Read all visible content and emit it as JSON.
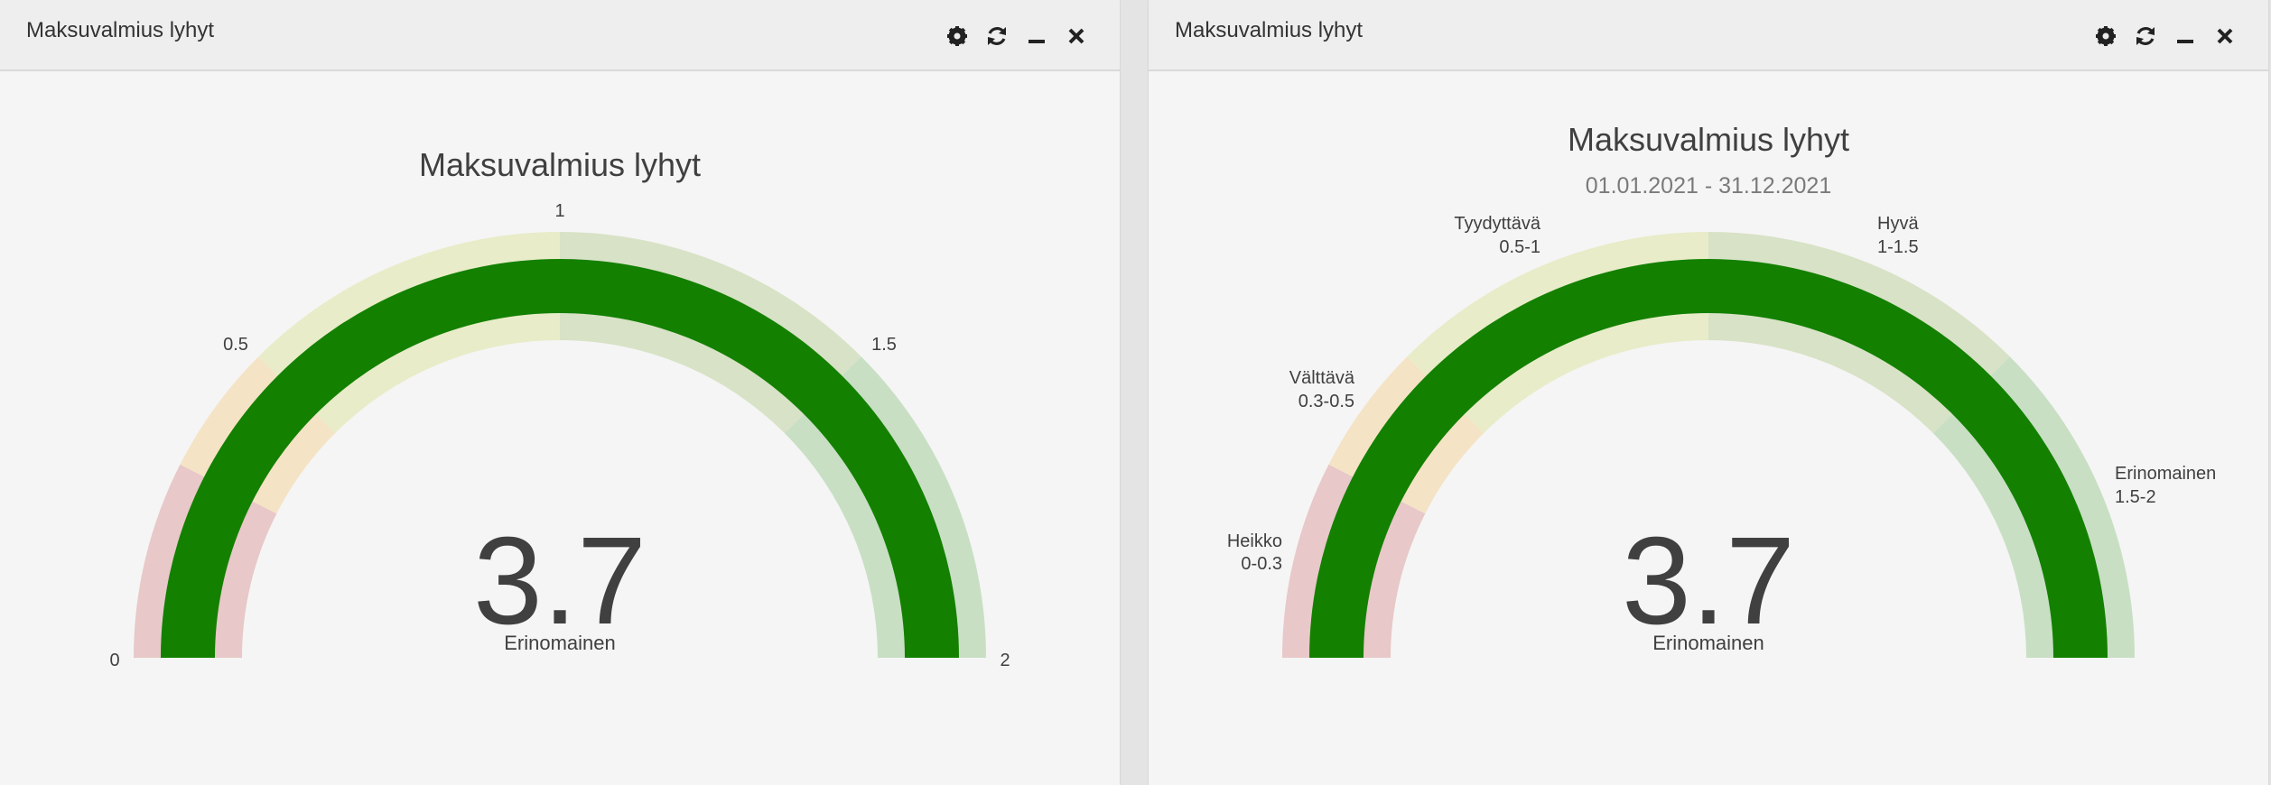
{
  "panels": [
    {
      "title": "Maksuvalmius lyhyt",
      "header_icons": [
        "gear-icon",
        "refresh-icon",
        "minimize-icon",
        "close-icon"
      ]
    },
    {
      "title": "Maksuvalmius lyhyt",
      "header_icons": [
        "gear-icon",
        "refresh-icon",
        "minimize-icon",
        "close-icon"
      ]
    }
  ],
  "colors": {
    "gauge_value": "#138000",
    "band_heikko": "#e8c8c8",
    "band_valttava": "#f5e3c6",
    "band_tyydyttava": "#e8ecc8",
    "band_hyva": "#d8e2c6",
    "band_erinomainen": "#c8dfc4",
    "text_dark": "#404040",
    "text_grey": "#7a7a7a"
  },
  "chart_data": [
    {
      "type": "gauge",
      "title": "Maksuvalmius lyhyt",
      "subtitle": "",
      "value": 3.7,
      "value_label": "3.7",
      "value_category": "Erinomainen",
      "range": [
        0,
        2
      ],
      "tick_labels": [
        {
          "value": 0,
          "text": "0"
        },
        {
          "value": 0.5,
          "text": "0.5"
        },
        {
          "value": 1,
          "text": "1"
        },
        {
          "value": 1.5,
          "text": "1.5"
        },
        {
          "value": 2,
          "text": "2"
        }
      ],
      "bands": [
        {
          "from": 0,
          "to": 0.3,
          "color": "#e8c8c8"
        },
        {
          "from": 0.3,
          "to": 0.5,
          "color": "#f5e3c6"
        },
        {
          "from": 0.5,
          "to": 1,
          "color": "#e8ecc8"
        },
        {
          "from": 1,
          "to": 1.5,
          "color": "#d8e2c6"
        },
        {
          "from": 1.5,
          "to": 2,
          "color": "#c8dfc4"
        }
      ]
    },
    {
      "type": "gauge",
      "title": "Maksuvalmius lyhyt",
      "subtitle": "01.01.2021 - 31.12.2021",
      "value": 3.7,
      "value_label": "3.7",
      "value_category": "Erinomainen",
      "range": [
        0,
        2
      ],
      "bands": [
        {
          "from": 0,
          "to": 0.3,
          "color": "#e8c8c8",
          "name": "Heikko",
          "range_text": "0-0.3"
        },
        {
          "from": 0.3,
          "to": 0.5,
          "color": "#f5e3c6",
          "name": "Välttävä",
          "range_text": "0.3-0.5"
        },
        {
          "from": 0.5,
          "to": 1,
          "color": "#e8ecc8",
          "name": "Tyydyttävä",
          "range_text": "0.5-1"
        },
        {
          "from": 1,
          "to": 1.5,
          "color": "#d8e2c6",
          "name": "Hyvä",
          "range_text": "1-1.5"
        },
        {
          "from": 1.5,
          "to": 2,
          "color": "#c8dfc4",
          "name": "Erinomainen",
          "range_text": "1.5-2"
        }
      ]
    }
  ]
}
